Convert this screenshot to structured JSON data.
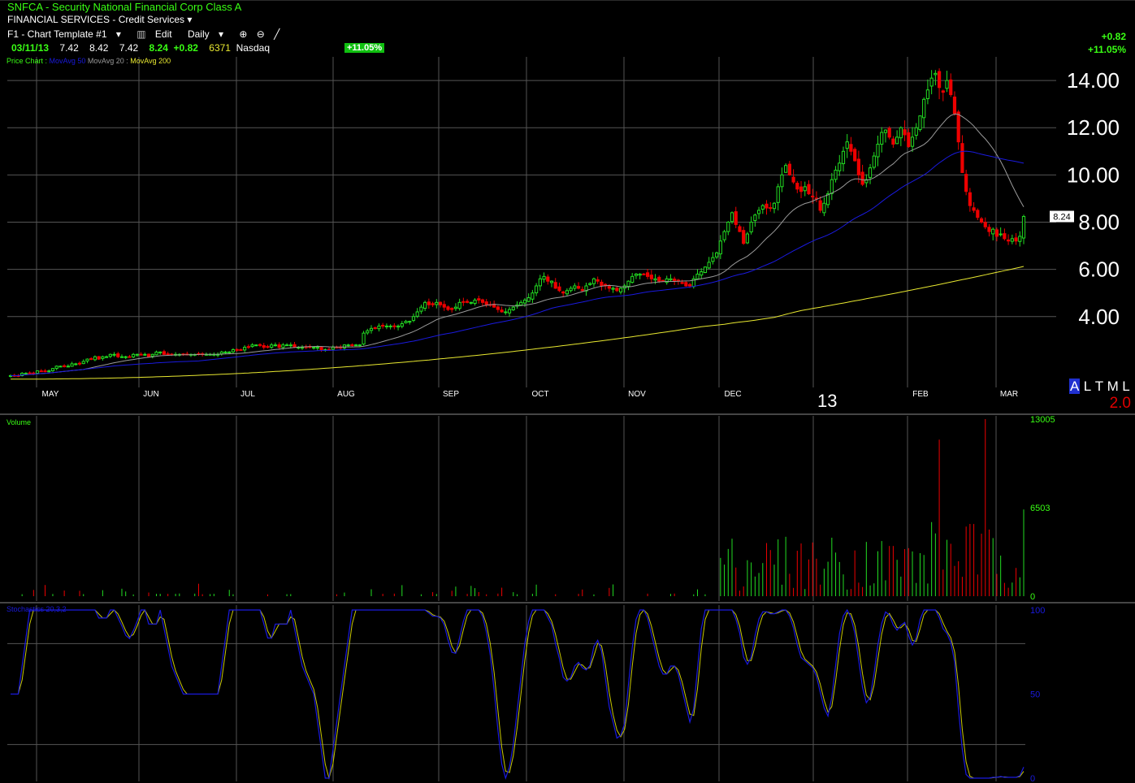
{
  "header": {
    "symbol_title": "SNFCA - Security National Financial Corp Class A",
    "sector": "FINANCIAL SERVICES - Credit Services",
    "template_label": "F1 - Chart Template #1",
    "edit_label": "Edit",
    "interval_label": "Daily"
  },
  "quote": {
    "date": "03/11/13",
    "open": "7.42",
    "high": "8.42",
    "low": "7.42",
    "close": "8.24",
    "change": "+0.82",
    "volume": "6371",
    "exchange": "Nasdaq",
    "pct_badge": "+11.05%"
  },
  "corner": {
    "change": "+0.82",
    "pct": "+11.05%"
  },
  "legend": {
    "price": "Price Chart :",
    "ma50": "MovAvg 50",
    "ma20": "MovAvg 20 :",
    "ma200": "MovAvg 200"
  },
  "modes": {
    "a": "A",
    "l": "L",
    "t": "T",
    "m": "M",
    "l2": "L"
  },
  "ratio": "2.0",
  "year_label": "13",
  "colors": {
    "up": "#22dd22",
    "down": "#ee0000",
    "ma20": "#9a9a9a",
    "ma50": "#1a1adf",
    "ma200": "#e8e830",
    "grid": "#555555",
    "accent": "#39ff14"
  },
  "chart_data": [
    {
      "type": "candlestick",
      "title": "SNFCA - Security National Financial Corp Class A",
      "price_tag": "8.24",
      "ylim": [
        1.0,
        15.0
      ],
      "yticks": [
        "4.00",
        "6.00",
        "8.00",
        "10.00",
        "12.00",
        "14.00"
      ],
      "month_labels": [
        "MAY",
        "JUN",
        "JUL",
        "AUG",
        "SEP",
        "OCT",
        "NOV",
        "DEC",
        "FEB",
        "MAR"
      ],
      "closes": [
        1.5,
        1.5,
        1.5,
        1.6,
        1.6,
        1.6,
        1.6,
        1.7,
        1.7,
        1.7,
        1.7,
        1.8,
        1.9,
        1.9,
        1.9,
        1.9,
        2.0,
        2.0,
        2.0,
        2.1,
        2.2,
        2.2,
        2.3,
        2.2,
        2.3,
        2.3,
        2.4,
        2.4,
        2.3,
        2.3,
        2.3,
        2.3,
        2.4,
        2.4,
        2.4,
        2.4,
        2.3,
        2.4,
        2.5,
        2.5,
        2.4,
        2.4,
        2.4,
        2.4,
        2.4,
        2.4,
        2.4,
        2.4,
        2.4,
        2.4,
        2.4,
        2.4,
        2.4,
        2.4,
        2.4,
        2.5,
        2.5,
        2.5,
        2.6,
        2.6,
        2.6,
        2.7,
        2.7,
        2.8,
        2.8,
        2.8,
        2.7,
        2.7,
        2.8,
        2.8,
        2.7,
        2.8,
        2.8,
        2.8,
        2.7,
        2.7,
        2.7,
        2.7,
        2.7,
        2.7,
        2.7,
        2.6,
        2.6,
        2.6,
        2.7,
        2.7,
        2.7,
        2.8,
        2.8,
        2.8,
        2.8,
        2.8,
        3.3,
        3.4,
        3.5,
        3.5,
        3.6,
        3.6,
        3.6,
        3.6,
        3.6,
        3.6,
        3.7,
        3.8,
        3.8,
        4.0,
        4.2,
        4.4,
        4.6,
        4.5,
        4.5,
        4.6,
        4.5,
        4.4,
        4.3,
        4.3,
        4.4,
        4.6,
        4.6,
        4.6,
        4.6,
        4.7,
        4.7,
        4.6,
        4.5,
        4.5,
        4.4,
        4.3,
        4.2,
        4.2,
        4.3,
        4.4,
        4.5,
        4.6,
        4.7,
        4.8,
        5.0,
        5.3,
        5.6,
        5.7,
        5.5,
        5.5,
        5.2,
        5.1,
        5.0,
        5.1,
        5.2,
        5.3,
        5.2,
        5.1,
        5.3,
        5.4,
        5.6,
        5.5,
        5.3,
        5.3,
        5.2,
        5.2,
        5.1,
        5.2,
        5.3,
        5.5,
        5.7,
        5.8,
        5.8,
        5.8,
        5.7,
        5.6,
        5.6,
        5.5,
        5.5,
        5.6,
        5.6,
        5.5,
        5.5,
        5.4,
        5.3,
        5.3,
        5.6,
        5.8,
        5.9,
        6.1,
        6.3,
        6.5,
        6.7,
        7.2,
        7.6,
        8.0,
        8.4,
        7.9,
        7.6,
        7.1,
        7.5,
        8.0,
        8.3,
        8.5,
        8.7,
        8.6,
        8.6,
        8.8,
        9.5,
        10.0,
        10.4,
        10.0,
        9.7,
        9.4,
        9.3,
        9.5,
        9.2,
        9.1,
        9.0,
        8.5,
        8.8,
        9.2,
        9.8,
        10.2,
        10.5,
        11.0,
        11.4,
        11.0,
        10.6,
        10.0,
        9.6,
        9.8,
        10.3,
        10.8,
        11.3,
        11.8,
        11.9,
        11.6,
        11.3,
        11.6,
        12.0,
        11.7,
        11.2,
        11.6,
        12.0,
        12.5,
        13.2,
        13.6,
        14.1,
        14.3,
        13.7,
        13.5,
        14.0,
        13.4,
        12.6,
        11.4,
        10.1,
        9.3,
        8.7,
        8.5,
        8.2,
        8.0,
        7.8,
        7.6,
        7.7,
        7.4,
        7.5,
        7.3,
        7.2,
        7.3,
        7.2,
        7.4,
        8.24
      ]
    },
    {
      "type": "bar",
      "title": "Volume",
      "yticks": [
        "0",
        "6503",
        "13005"
      ],
      "ylim": [
        0,
        13005
      ]
    },
    {
      "type": "line",
      "title": "Stochastics 20,3,2",
      "yticks": [
        "0",
        "50",
        "100"
      ],
      "ylim": [
        0,
        100
      ]
    }
  ]
}
